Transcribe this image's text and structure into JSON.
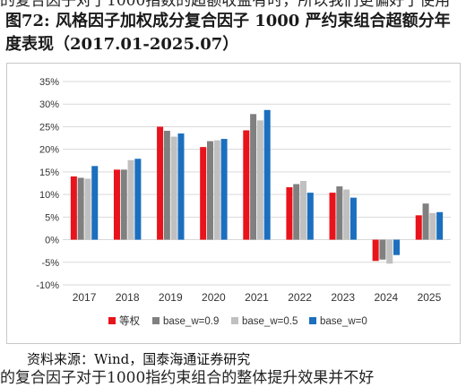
{
  "top_cut_text": "的复合因子对于1000指数的超额收益有时，所以我们更偏好于使用",
  "figure_title": "图72:  风格因子加权成分复合因子 1000 严约束组合超额分年度表现（2017.01-2025.07）",
  "source": "资料来源：Wind，国泰海通证券研究",
  "bottom_cut_text": "的复合因子对于1000指约束组合的整体提升效果并不好",
  "colors": {
    "s0": "#e8131b",
    "s1": "#808080",
    "s2": "#c0c0c0",
    "s3": "#1b6fbe",
    "grid": "#d9d9d9"
  },
  "chart_data": {
    "type": "bar",
    "categories": [
      "2017",
      "2018",
      "2019",
      "2020",
      "2021",
      "2022",
      "2023",
      "2024",
      "2025"
    ],
    "series": [
      {
        "name": "等权",
        "values": [
          14.0,
          15.5,
          25.0,
          20.5,
          24.2,
          11.6,
          10.4,
          -4.7,
          5.4
        ]
      },
      {
        "name": "base_w=0.9",
        "values": [
          13.7,
          15.5,
          24.1,
          21.8,
          27.8,
          12.3,
          11.8,
          -4.4,
          8.0
        ]
      },
      {
        "name": "base_w=0.5",
        "values": [
          13.5,
          17.6,
          22.8,
          22.0,
          26.4,
          13.0,
          11.1,
          -5.3,
          5.9
        ]
      },
      {
        "name": "base_w=0",
        "values": [
          16.3,
          17.9,
          23.5,
          22.3,
          28.7,
          10.4,
          9.3,
          -3.4,
          6.1
        ]
      }
    ],
    "ylim": [
      -10,
      35
    ],
    "yticks": [
      "-10%",
      "-5%",
      "0%",
      "5%",
      "10%",
      "15%",
      "20%",
      "25%",
      "30%",
      "35%"
    ],
    "ytick_values": [
      -10,
      -5,
      0,
      5,
      10,
      15,
      20,
      25,
      30,
      35
    ],
    "grid": true,
    "legend": "bottom"
  }
}
